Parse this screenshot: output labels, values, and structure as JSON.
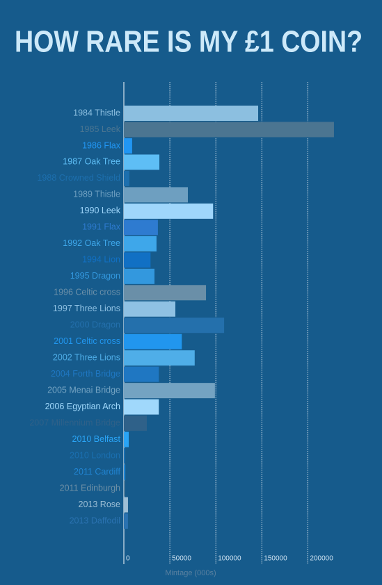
{
  "chart_data": {
    "type": "hbar",
    "title": "HOW RARE IS MY £1 COIN?",
    "x_label": "Mintage (000s)",
    "categories": [
      "1984 Thistle",
      "1985 Leek",
      "1986 Flax",
      "1987 Oak Tree",
      "1988 Crowned Shield",
      "1989 Thistle",
      "1990 Leek",
      "1991 Flax",
      "1992 Oak Tree",
      "1994 Lion",
      "1995 Dragon",
      "1996 Celtic cross",
      "1997 Three Lions",
      "2000 Dragon",
      "2001 Celtic cross",
      "2002 Three Lions",
      "2004 Forth Bridge",
      "2005 Menai Bridge",
      "2006 Egyptian Arch",
      "2007 Millennium Bridge",
      "2010 Belfast",
      "2010 London",
      "2011 Cardiff",
      "2011 Edinburgh",
      "2013 Rose",
      "2013 Daffodil"
    ],
    "values": [
      146000,
      228400,
      9000,
      38600,
      6000,
      69600,
      97000,
      37000,
      35500,
      29000,
      33300,
      89300,
      56000,
      109000,
      63000,
      77000,
      38000,
      99000,
      38000,
      25000,
      5300,
      1500,
      1600,
      900,
      4500,
      4500
    ],
    "colors": [
      "#8cbfe0",
      "#4b7591",
      "#2196f3",
      "#5ebef5",
      "#1d6fae",
      "#6e9fc0",
      "#9fd6fb",
      "#2e7bd0",
      "#3ea7ea",
      "#1170c4",
      "#3398de",
      "#6a8fa8",
      "#8fc1e3",
      "#2470ac",
      "#2196ee",
      "#4faee8",
      "#1f77c2",
      "#74a3c2",
      "#a0d8fb",
      "#2f6189",
      "#2aa4f5",
      "#1a6fb0",
      "#2185d3",
      "#6d8fa5",
      "#9ebfd6",
      "#2a72b0"
    ],
    "xlim": [
      0,
      250000
    ],
    "xticks": [
      0,
      50000,
      100000,
      150000,
      200000
    ],
    "grid": true
  }
}
